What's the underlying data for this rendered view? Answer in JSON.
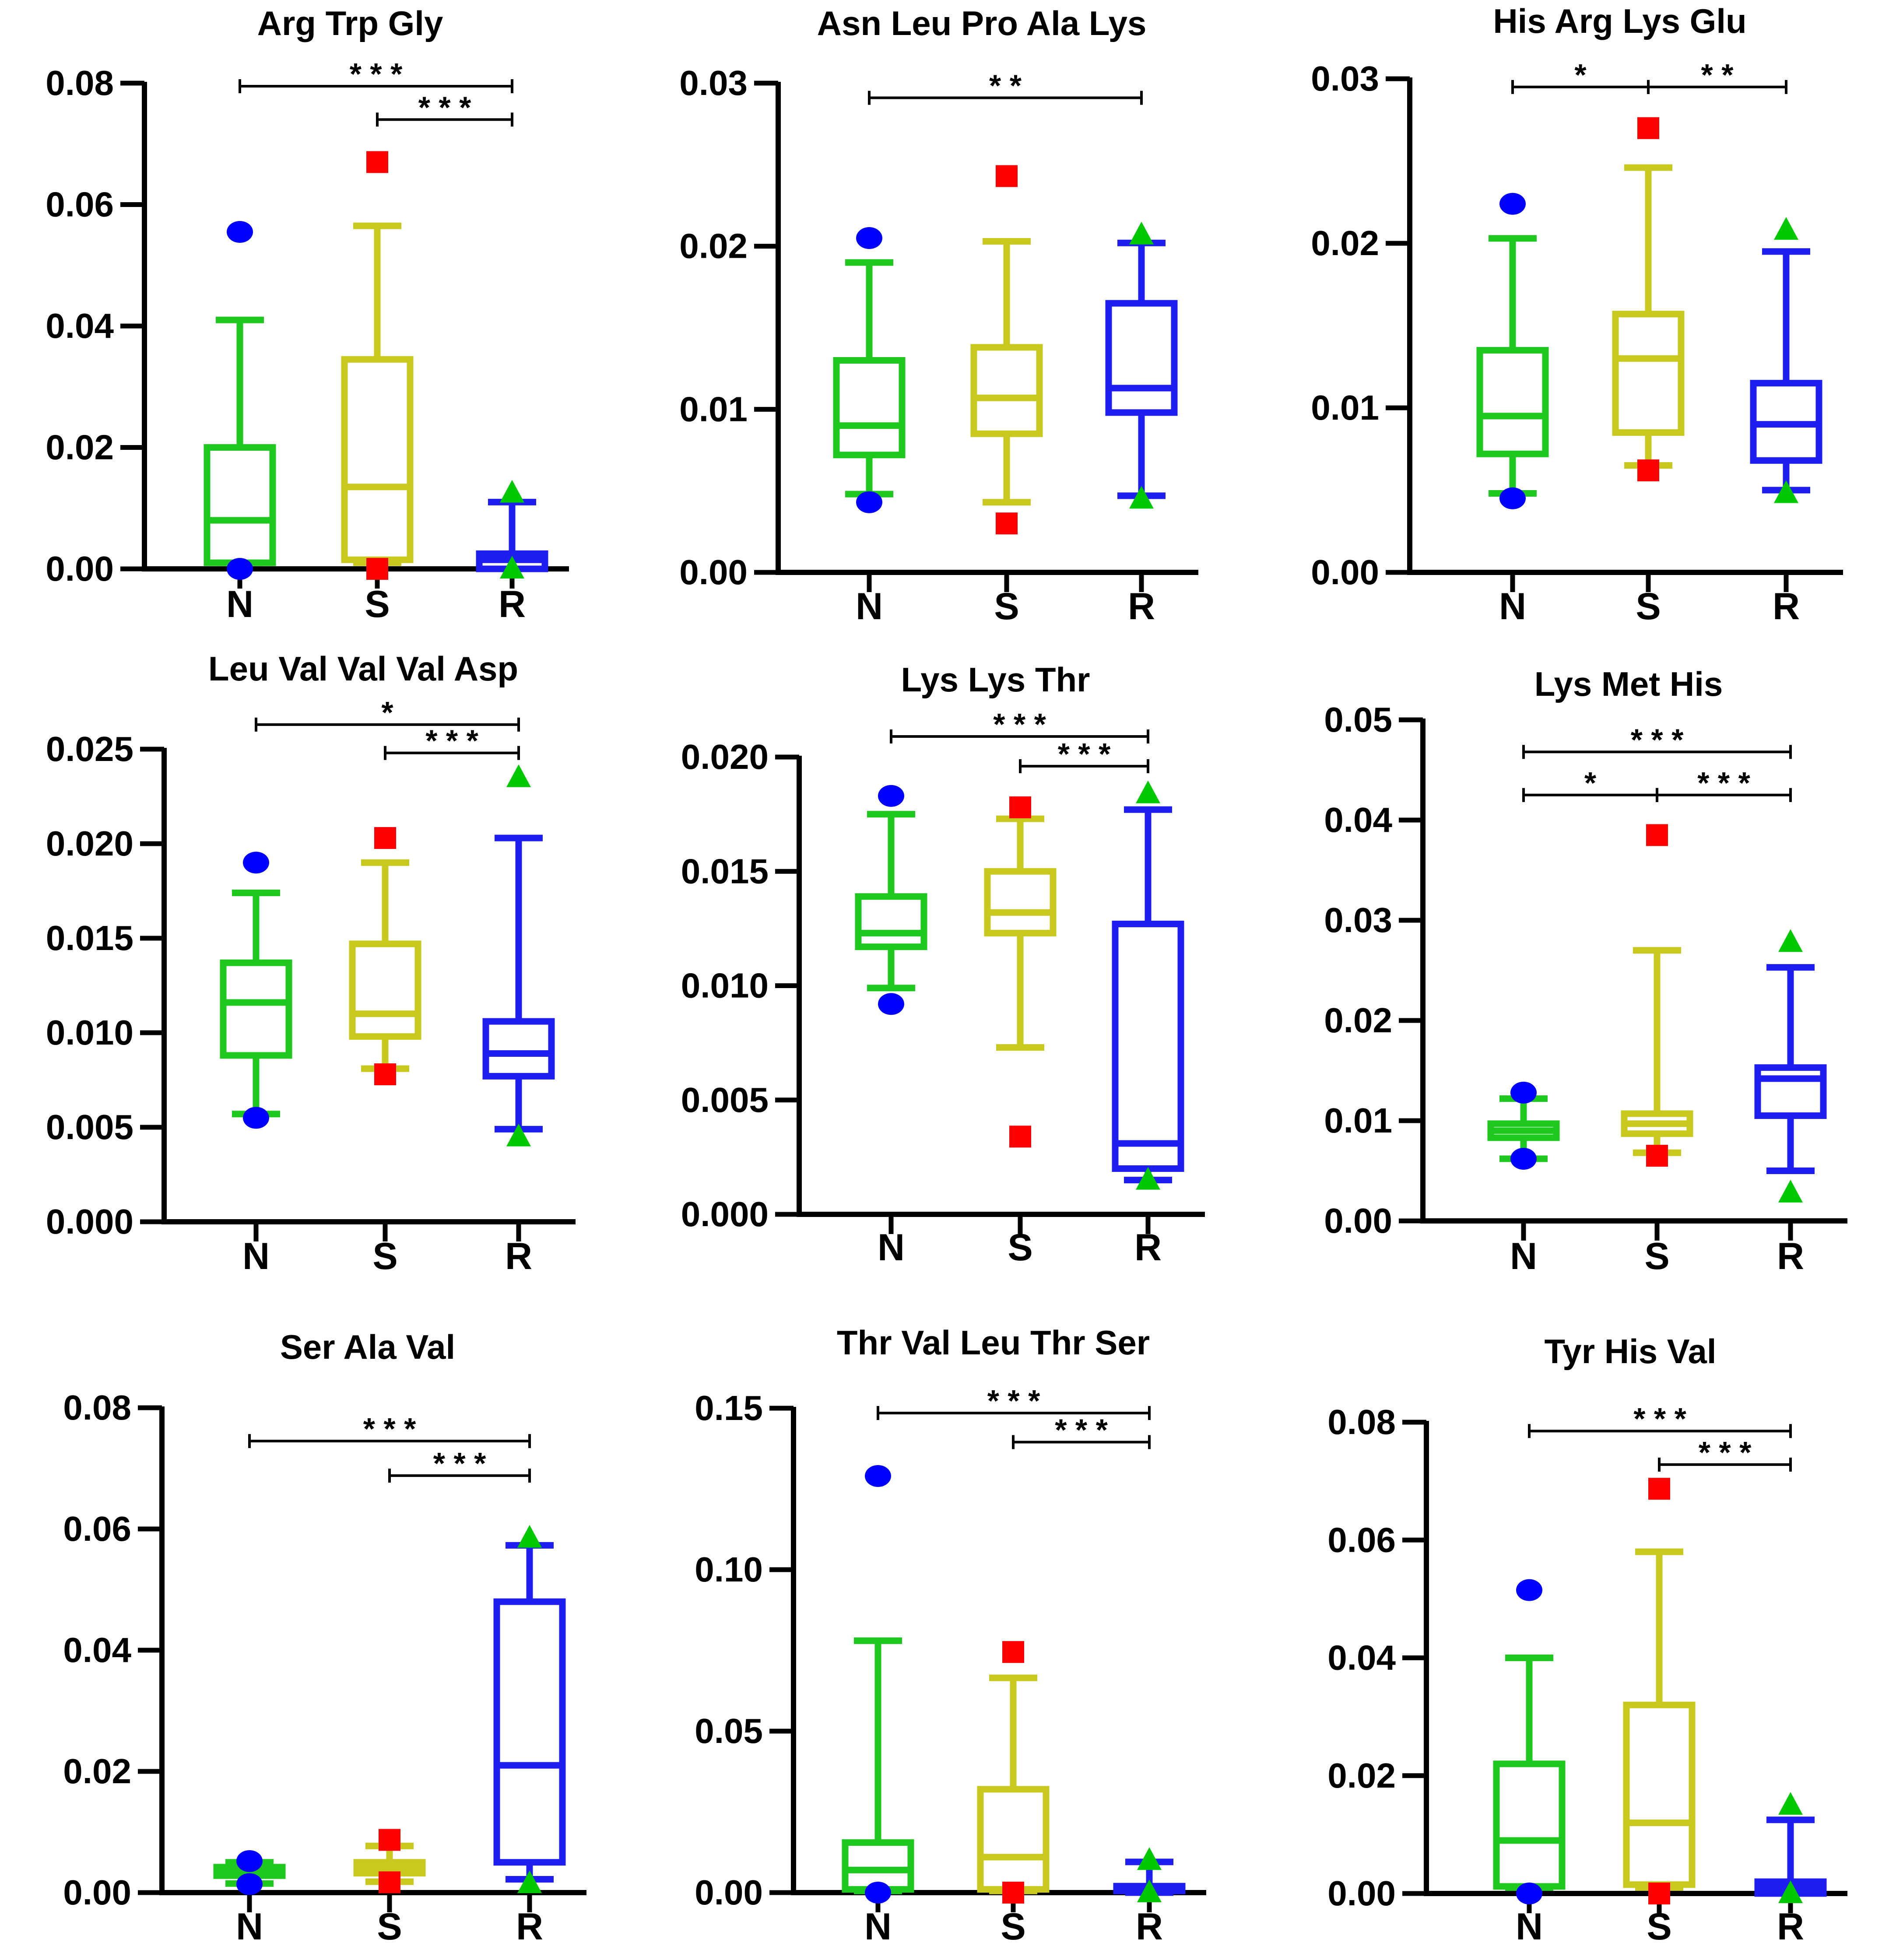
{
  "figure": {
    "colors": {
      "N": "#1ec81e",
      "S": "#c8c81e",
      "R": "#1e1ef0",
      "outlier_N": "#0000ff",
      "outlier_S": "#ff0000",
      "outlier_R": "#00c800"
    }
  },
  "chart_data": [
    {
      "type": "box",
      "title": "Arg Trp Gly",
      "categories": [
        "N",
        "S",
        "R"
      ],
      "ylim": [
        0,
        0.08
      ],
      "yticks": [
        "0.00",
        "0.02",
        "0.04",
        "0.06",
        "0.08"
      ],
      "ytick_values": [
        0,
        0.02,
        0.04,
        0.06,
        0.08
      ],
      "boxes": [
        {
          "group": "N",
          "min": 0.001,
          "q1": 0.001,
          "median": 0.008,
          "q3": 0.02,
          "max": 0.041,
          "outliers": [
            0.0555,
            0.0
          ]
        },
        {
          "group": "S",
          "min": 0.001,
          "q1": 0.0015,
          "median": 0.0135,
          "q3": 0.0345,
          "max": 0.0565,
          "outliers": [
            0.067,
            0.0
          ]
        },
        {
          "group": "R",
          "min": 0.0,
          "q1": 0.0,
          "median": 0.0015,
          "q3": 0.0025,
          "max": 0.011,
          "outliers": [
            0.0125,
            0.0
          ]
        }
      ],
      "significance": [
        {
          "from": "N",
          "to": "R",
          "label": "* * *",
          "y": 0.0795
        },
        {
          "from": "S",
          "to": "R",
          "label": "* * *",
          "y": 0.074
        }
      ]
    },
    {
      "type": "box",
      "title": "Asn Leu Pro Ala Lys",
      "categories": [
        "N",
        "S",
        "R"
      ],
      "ylim": [
        0,
        0.03
      ],
      "yticks": [
        "0.00",
        "0.01",
        "0.02",
        "0.03"
      ],
      "ytick_values": [
        0,
        0.01,
        0.02,
        0.03
      ],
      "boxes": [
        {
          "group": "N",
          "min": 0.0048,
          "q1": 0.0072,
          "median": 0.009,
          "q3": 0.013,
          "max": 0.019,
          "outliers": [
            0.0205,
            0.0043
          ]
        },
        {
          "group": "S",
          "min": 0.0043,
          "q1": 0.0085,
          "median": 0.0107,
          "q3": 0.0138,
          "max": 0.0203,
          "outliers": [
            0.0243,
            0.003
          ]
        },
        {
          "group": "R",
          "min": 0.0047,
          "q1": 0.0098,
          "median": 0.0113,
          "q3": 0.0165,
          "max": 0.0202,
          "outliers": [
            0.0207,
            0.0045
          ]
        }
      ],
      "significance": [
        {
          "from": "N",
          "to": "R",
          "label": "*  *",
          "y": 0.0291
        }
      ]
    },
    {
      "type": "box",
      "title": "His Arg Lys Glu",
      "categories": [
        "N",
        "S",
        "R"
      ],
      "ylim": [
        0,
        0.03
      ],
      "yticks": [
        "0.00",
        "0.01",
        "0.02",
        "0.03"
      ],
      "ytick_values": [
        0,
        0.01,
        0.02,
        0.03
      ],
      "boxes": [
        {
          "group": "N",
          "min": 0.0048,
          "q1": 0.0072,
          "median": 0.0095,
          "q3": 0.0135,
          "max": 0.0203,
          "outliers": [
            0.0224,
            0.0045
          ]
        },
        {
          "group": "S",
          "min": 0.0065,
          "q1": 0.0085,
          "median": 0.013,
          "q3": 0.0157,
          "max": 0.0246,
          "outliers": [
            0.027,
            0.0062
          ]
        },
        {
          "group": "R",
          "min": 0.005,
          "q1": 0.0068,
          "median": 0.009,
          "q3": 0.0115,
          "max": 0.0195,
          "outliers": [
            0.0208,
            0.0048
          ]
        }
      ],
      "significance": [
        {
          "from": "N",
          "to": "S",
          "label": "*",
          "y": 0.0295
        },
        {
          "from": "S",
          "to": "R",
          "label": "* *",
          "y": 0.0295
        }
      ]
    },
    {
      "type": "box",
      "title": "Leu Val Val Val Asp",
      "categories": [
        "N",
        "S",
        "R"
      ],
      "ylim": [
        0,
        0.025
      ],
      "yticks": [
        "0.000",
        "0.005",
        "0.010",
        "0.015",
        "0.020",
        "0.025"
      ],
      "ytick_values": [
        0,
        0.005,
        0.01,
        0.015,
        0.02,
        0.025
      ],
      "boxes": [
        {
          "group": "N",
          "min": 0.0057,
          "q1": 0.0088,
          "median": 0.0116,
          "q3": 0.0137,
          "max": 0.0174,
          "outliers": [
            0.019,
            0.0055
          ]
        },
        {
          "group": "S",
          "min": 0.0081,
          "q1": 0.0098,
          "median": 0.011,
          "q3": 0.0147,
          "max": 0.019,
          "outliers": [
            0.0203,
            0.0078
          ]
        },
        {
          "group": "R",
          "min": 0.0049,
          "q1": 0.0077,
          "median": 0.0089,
          "q3": 0.0106,
          "max": 0.0203,
          "outliers": [
            0.0235,
            0.0045
          ]
        }
      ],
      "significance": [
        {
          "from": "N",
          "to": "R",
          "label": "*",
          "y": 0.0263
        },
        {
          "from": "S",
          "to": "R",
          "label": "* * *",
          "y": 0.0248
        }
      ]
    },
    {
      "type": "box",
      "title": "Lys Lys Thr",
      "categories": [
        "N",
        "S",
        "R"
      ],
      "ylim": [
        0,
        0.02
      ],
      "yticks": [
        "0.000",
        "0.005",
        "0.010",
        "0.015",
        "0.020"
      ],
      "ytick_values": [
        0,
        0.005,
        0.01,
        0.015,
        0.02
      ],
      "boxes": [
        {
          "group": "N",
          "min": 0.0099,
          "q1": 0.0117,
          "median": 0.0123,
          "q3": 0.0139,
          "max": 0.0175,
          "outliers": [
            0.0183,
            0.0092
          ]
        },
        {
          "group": "S",
          "min": 0.0073,
          "q1": 0.0123,
          "median": 0.0132,
          "q3": 0.015,
          "max": 0.0173,
          "outliers": [
            0.0178,
            0.0034
          ]
        },
        {
          "group": "R",
          "min": 0.0015,
          "q1": 0.002,
          "median": 0.0031,
          "q3": 0.0127,
          "max": 0.0177,
          "outliers": [
            0.0184,
            0.0015
          ]
        }
      ],
      "significance": [
        {
          "from": "N",
          "to": "R",
          "label": "* * *",
          "y": 0.0209
        },
        {
          "from": "S",
          "to": "R",
          "label": "* * *",
          "y": 0.0196
        }
      ]
    },
    {
      "type": "box",
      "title": "Lys Met His",
      "categories": [
        "N",
        "S",
        "R"
      ],
      "ylim": [
        0,
        0.05
      ],
      "yticks": [
        "0.00",
        "0.01",
        "0.02",
        "0.03",
        "0.04",
        "0.05"
      ],
      "ytick_values": [
        0,
        0.01,
        0.02,
        0.03,
        0.04,
        0.05
      ],
      "boxes": [
        {
          "group": "N",
          "min": 0.0062,
          "q1": 0.0083,
          "median": 0.009,
          "q3": 0.0097,
          "max": 0.0122,
          "outliers": [
            0.0128,
            0.0062
          ]
        },
        {
          "group": "S",
          "min": 0.0068,
          "q1": 0.0087,
          "median": 0.0097,
          "q3": 0.0107,
          "max": 0.027,
          "outliers": [
            0.0385,
            0.0065
          ]
        },
        {
          "group": "R",
          "min": 0.005,
          "q1": 0.0105,
          "median": 0.0142,
          "q3": 0.0153,
          "max": 0.0253,
          "outliers": [
            0.0278,
            0.0028
          ]
        }
      ],
      "significance": [
        {
          "from": "N",
          "to": "R",
          "label": "* * *",
          "y": 0.0468
        },
        {
          "from": "N",
          "to": "S",
          "label": "*",
          "y": 0.0425
        },
        {
          "from": "S",
          "to": "R",
          "label": "* * *",
          "y": 0.0425
        }
      ]
    },
    {
      "type": "box",
      "title": "Ser Ala Val",
      "categories": [
        "N",
        "S",
        "R"
      ],
      "ylim": [
        0,
        0.08
      ],
      "yticks": [
        "0.00",
        "0.02",
        "0.04",
        "0.06",
        "0.08"
      ],
      "ytick_values": [
        0,
        0.02,
        0.04,
        0.06,
        0.08
      ],
      "boxes": [
        {
          "group": "N",
          "min": 0.0015,
          "q1": 0.0028,
          "median": 0.0035,
          "q3": 0.0042,
          "max": 0.005,
          "outliers": [
            0.0052,
            0.0014
          ]
        },
        {
          "group": "S",
          "min": 0.0018,
          "q1": 0.0032,
          "median": 0.004,
          "q3": 0.005,
          "max": 0.0077,
          "outliers": [
            0.0087,
            0.0017
          ]
        },
        {
          "group": "R",
          "min": 0.0022,
          "q1": 0.005,
          "median": 0.021,
          "q3": 0.048,
          "max": 0.0573,
          "outliers": [
            0.0585,
            0.0015
          ]
        }
      ],
      "significance": [
        {
          "from": "N",
          "to": "R",
          "label": "* * *",
          "y": 0.0745
        },
        {
          "from": "S",
          "to": "R",
          "label": "* * *",
          "y": 0.0688
        }
      ]
    },
    {
      "type": "box",
      "title": "Thr Val Leu Thr Ser",
      "categories": [
        "N",
        "S",
        "R"
      ],
      "ylim": [
        0,
        0.15
      ],
      "yticks": [
        "0.00",
        "0.05",
        "0.10",
        "0.15"
      ],
      "ytick_values": [
        0,
        0.05,
        0.1,
        0.15
      ],
      "boxes": [
        {
          "group": "N",
          "min": 0.0005,
          "q1": 0.001,
          "median": 0.007,
          "q3": 0.0155,
          "max": 0.078,
          "outliers": [
            0.129,
            0.0
          ]
        },
        {
          "group": "S",
          "min": 0.0005,
          "q1": 0.001,
          "median": 0.011,
          "q3": 0.032,
          "max": 0.0665,
          "outliers": [
            0.0745,
            0.0
          ]
        },
        {
          "group": "R",
          "min": 0.0,
          "q1": 0.0005,
          "median": 0.001,
          "q3": 0.002,
          "max": 0.0095,
          "outliers": [
            0.01,
            0.0
          ]
        }
      ],
      "significance": [
        {
          "from": "N",
          "to": "R",
          "label": "*   *   *",
          "y": 0.1485
        },
        {
          "from": "S",
          "to": "R",
          "label": "* * *",
          "y": 0.1395
        }
      ]
    },
    {
      "type": "box",
      "title": "Tyr His Val",
      "categories": [
        "N",
        "S",
        "R"
      ],
      "ylim": [
        0,
        0.08
      ],
      "yticks": [
        "0.00",
        "0.02",
        "0.04",
        "0.06",
        "0.08"
      ],
      "ytick_values": [
        0,
        0.02,
        0.04,
        0.06,
        0.08
      ],
      "boxes": [
        {
          "group": "N",
          "min": 0.001,
          "q1": 0.0012,
          "median": 0.009,
          "q3": 0.022,
          "max": 0.04,
          "outliers": [
            0.0515,
            0.0
          ]
        },
        {
          "group": "S",
          "min": 0.001,
          "q1": 0.0015,
          "median": 0.012,
          "q3": 0.032,
          "max": 0.058,
          "outliers": [
            0.0687,
            0.0
          ]
        },
        {
          "group": "R",
          "min": 0.0,
          "q1": 0.0,
          "median": 0.001,
          "q3": 0.002,
          "max": 0.0125,
          "outliers": [
            0.015,
            0.0
          ]
        }
      ],
      "significance": [
        {
          "from": "N",
          "to": "R",
          "label": "* * *",
          "y": 0.0785
        },
        {
          "from": "S",
          "to": "R",
          "label": "* * *",
          "y": 0.0728
        }
      ]
    }
  ]
}
